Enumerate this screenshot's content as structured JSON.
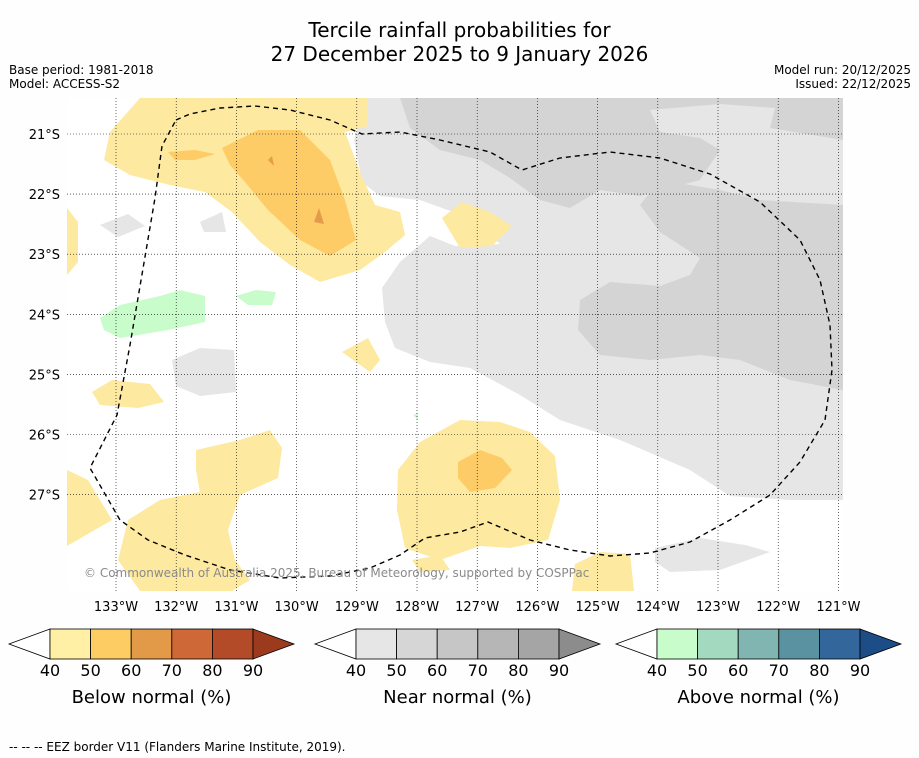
{
  "title_line1": "Tercile rainfall probabilities for",
  "title_line2": "27 December 2025 to 9 January 2026",
  "base_period": "Base period: 1981-2018",
  "model": "Model: ACCESS-S2",
  "model_run": "Model run: 20/12/2025",
  "issued": "Issued: 22/12/2025",
  "copyright": "© Commonwealth of Australia 2025, Bureau of Meteorology, supported by COSPPac",
  "lat_labels": [
    "21°S",
    "22°S",
    "23°S",
    "24°S",
    "25°S",
    "26°S",
    "27°S"
  ],
  "lon_labels": [
    "133°W",
    "132°W",
    "131°W",
    "130°W",
    "129°W",
    "128°W",
    "127°W",
    "126°W",
    "125°W",
    "124°W",
    "123°W",
    "122°W",
    "121°W"
  ],
  "colorbars": [
    {
      "label": "Below normal (%)",
      "ticks": [
        "40",
        "50",
        "60",
        "70",
        "80",
        "90"
      ],
      "colors": [
        "#fff0a6",
        "#fdcd63",
        "#e39a48",
        "#ce6836",
        "#b34b28",
        "#9c3a1e"
      ]
    },
    {
      "label": "Near normal (%)",
      "ticks": [
        "40",
        "50",
        "60",
        "70",
        "80",
        "90"
      ],
      "colors": [
        "#e6e6e6",
        "#d6d6d6",
        "#c6c6c6",
        "#b6b6b6",
        "#a5a5a5",
        "#8c8c8c"
      ]
    },
    {
      "label": "Above normal (%)",
      "ticks": [
        "40",
        "50",
        "60",
        "70",
        "80",
        "90"
      ],
      "colors": [
        "#c9fccb",
        "#a3d9bf",
        "#80b5b1",
        "#5a92a1",
        "#33679b",
        "#1c4d87"
      ]
    }
  ],
  "footnote": "--  --  -- EEZ border V11 (Flanders Marine Institute, 2019).",
  "colors": {
    "below_50": "#fde9a0",
    "below_60": "#fecc66",
    "below_70": "#e49b4a",
    "near_50": "#e6e6e6",
    "near_60": "#d4d4d4",
    "above_50": "#c9fccb"
  }
}
